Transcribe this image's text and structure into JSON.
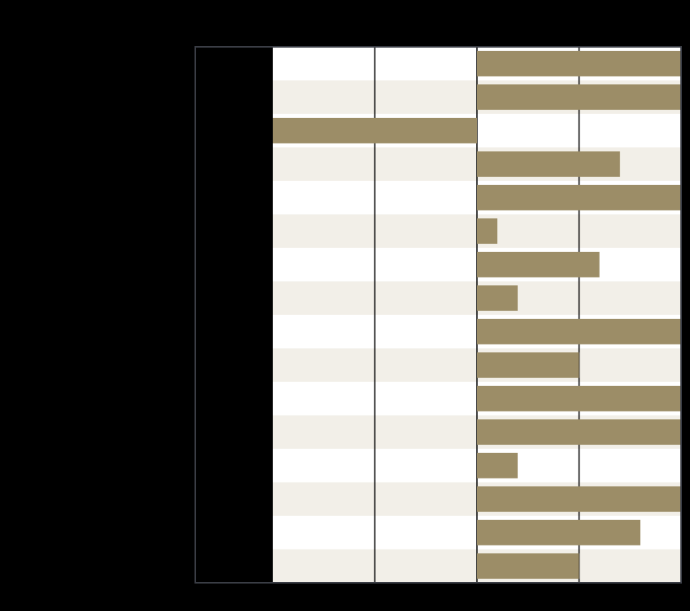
{
  "chart_data": {
    "type": "bar",
    "orientation": "horizontal",
    "title": "",
    "xlabel": "",
    "ylabel": "",
    "categories": [
      "",
      "",
      "",
      "",
      "",
      "",
      "",
      "",
      "",
      "",
      "",
      "",
      "",
      "",
      "",
      ""
    ],
    "values": [
      2,
      2,
      -2,
      1.4,
      2,
      0.2,
      1.2,
      0.4,
      2,
      1,
      2,
      2,
      0.4,
      2,
      1.6,
      1
    ],
    "xlim": [
      -2,
      2
    ],
    "grid": true,
    "colors": {
      "bar": "#9c8d67",
      "band_light": "#ffffff",
      "band_alt": "#f2efe8",
      "gridline": "#000000",
      "frame": "#3a3d45",
      "background": "#000000"
    }
  }
}
